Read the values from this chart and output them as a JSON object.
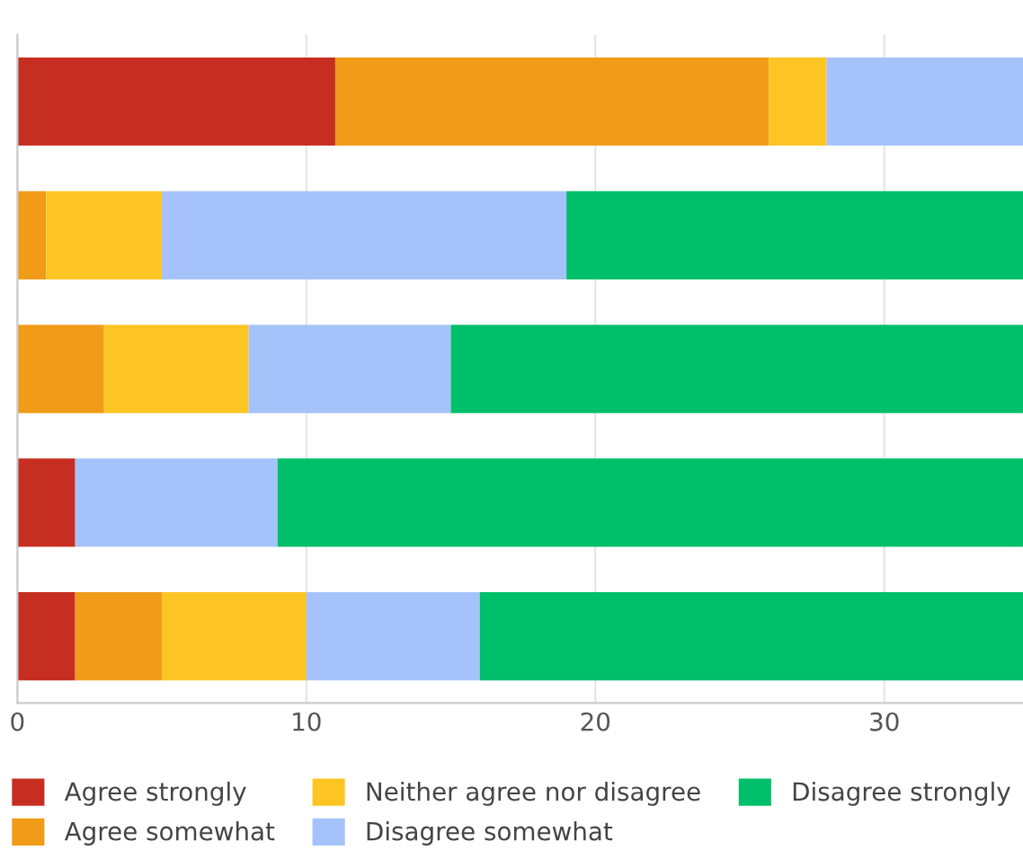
{
  "chart_data": {
    "type": "bar",
    "orientation": "horizontal",
    "stacked": true,
    "categories": [
      null,
      null,
      null,
      null,
      null
    ],
    "series": [
      {
        "name": "Agree strongly",
        "color": "#c72e22",
        "values": [
          11,
          null,
          null,
          2,
          2
        ]
      },
      {
        "name": "Agree somewhat",
        "color": "#f09c18",
        "values": [
          15,
          1,
          3,
          null,
          3
        ]
      },
      {
        "name": "Neither agree nor disagree",
        "color": "#fdc524",
        "values": [
          2,
          4,
          5,
          null,
          5
        ]
      },
      {
        "name": "Disagree somewhat",
        "color": "#a5c3fa",
        "values": [
          6.8,
          14,
          7,
          7,
          6
        ]
      },
      {
        "name": "Disagree strongly",
        "color": "#00bf6a",
        "values": [
          null,
          15.8,
          19.8,
          25.8,
          18.8
        ]
      }
    ],
    "xlim": [
      0,
      34.8
    ],
    "xticks": [
      0,
      10,
      20,
      30
    ],
    "grid": "x",
    "legend": "bottom",
    "tick_labels": "x"
  }
}
